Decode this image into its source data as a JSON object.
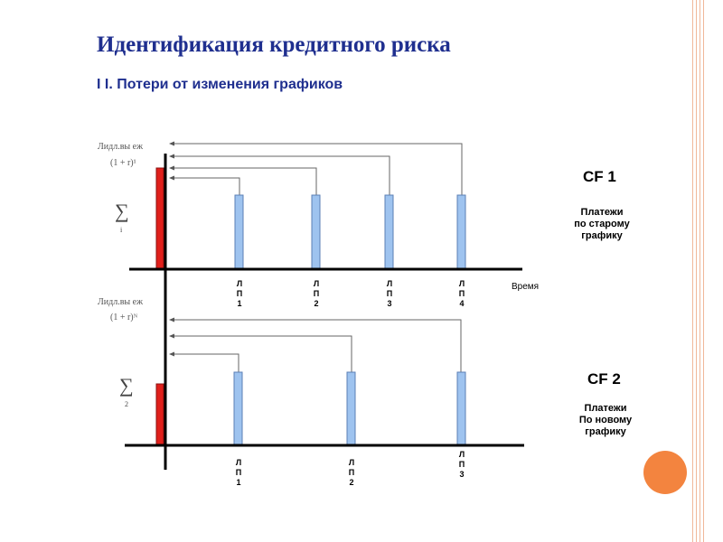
{
  "title": "Идентификация кредитного риска",
  "subtitle": "I I.  Потери от изменения графиков",
  "top_panel": {
    "cf_label": "CF 1",
    "description_lines": [
      "Платежи",
      "по старому",
      "графику"
    ],
    "formula_line1": "Лидл.вы еж",
    "formula_line2": "(1 + r)¹",
    "sigma_sub": "i",
    "time_label": "Время",
    "payments": [
      {
        "chars": [
          "Л",
          "П",
          "1"
        ]
      },
      {
        "chars": [
          "Л",
          "П",
          "2"
        ]
      },
      {
        "chars": [
          "Л",
          "П",
          "3"
        ]
      },
      {
        "chars": [
          "Л",
          "П",
          "4"
        ]
      }
    ]
  },
  "bottom_panel": {
    "cf_label": "CF 2",
    "description_lines": [
      "Платежи",
      "По новому",
      "графику"
    ],
    "formula_line1": "Лидл.вы еж",
    "formula_line2": "(1 + r)ᴺ",
    "sigma_sub": "2",
    "payments": [
      {
        "chars": [
          "Л",
          "П",
          "1"
        ]
      },
      {
        "chars": [
          "Л",
          "П",
          "2"
        ]
      },
      {
        "chars": [
          "Л",
          "П",
          "3"
        ]
      }
    ]
  },
  "colors": {
    "title": "#1f2f8f",
    "payment_bar": "#9ec3ef",
    "payment_bar_border": "#5b7fb6",
    "investment_bar": "#e0201b",
    "frame": "#f0b89a",
    "accent_circle": "#f3843f"
  }
}
